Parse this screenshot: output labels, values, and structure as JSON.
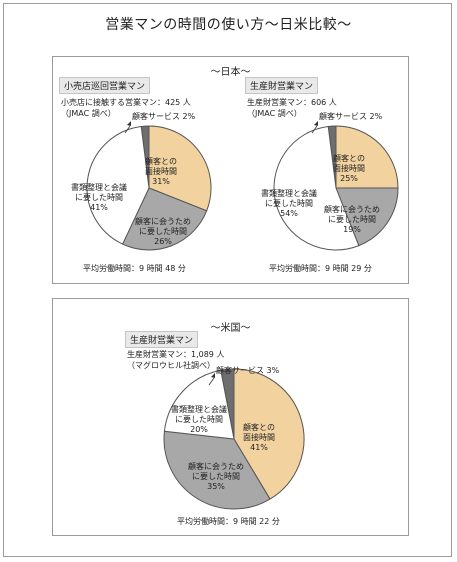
{
  "title": "営業マンの時間の使い方〜日米比較〜",
  "japan": {
    "heading": "〜日本〜",
    "retail": {
      "segment": "小売店巡回営業マン",
      "note": [
        "小売店に接触する営業マン：425 人",
        "（JMAC 調べ）"
      ],
      "avg": "平均労働時間：9 時間 48 分"
    },
    "production": {
      "segment": "生産財営業マン",
      "note": [
        "生産財営業マン：606 人",
        "（JMAC 調べ）"
      ],
      "avg": "平均労働時間：9 時間 29 分"
    }
  },
  "us": {
    "heading": "〜米国〜",
    "production": {
      "segment": "生産財営業マン",
      "note": [
        "生産財営業マン：1,089 人",
        "（マグロウヒル社調べ）"
      ],
      "avg": "平均労働時間：9 時間 22 分"
    }
  },
  "colors": {
    "face_to_face": "#f2d3a0",
    "meeting_travel": "#a8a8a8",
    "paperwork": "#ffffff",
    "customer_service": "#6e6e6e",
    "stroke": "#555555"
  },
  "chart_data": [
    {
      "type": "pie",
      "title": "小売店巡回営業マン",
      "slices": [
        {
          "label": "顧客サービス",
          "value": 2
        },
        {
          "label": "顧客との面接時間",
          "value": 31
        },
        {
          "label": "顧客に会うために要した時間",
          "value": 26
        },
        {
          "label": "書類整理と会議に要した時間",
          "value": 41
        }
      ],
      "labels": {
        "customer_service": [
          "顧客サービス 2%"
        ],
        "face_to_face": [
          "顧客との",
          "面接時間",
          "31%"
        ],
        "meeting_travel": [
          "顧客に会うため",
          "に要した時間",
          "26%"
        ],
        "paperwork": [
          "書類整理と会議",
          "に要した時間",
          "41%"
        ]
      }
    },
    {
      "type": "pie",
      "title": "生産財営業マン（日本）",
      "slices": [
        {
          "label": "顧客サービス",
          "value": 2
        },
        {
          "label": "顧客との面接時間",
          "value": 25
        },
        {
          "label": "顧客に会うために要した時間",
          "value": 19
        },
        {
          "label": "書類整理と会議に要した時間",
          "value": 54
        }
      ],
      "labels": {
        "customer_service": [
          "顧客サービス 2%"
        ],
        "face_to_face": [
          "顧客との",
          "面接時間",
          "25%"
        ],
        "meeting_travel": [
          "顧客に会うため",
          "に要した時間",
          "19%"
        ],
        "paperwork": [
          "書類整理と会議",
          "に要した時間",
          "54%"
        ]
      }
    },
    {
      "type": "pie",
      "title": "生産財営業マン（米国）",
      "slices": [
        {
          "label": "顧客サービス",
          "value": 3
        },
        {
          "label": "顧客との面接時間",
          "value": 41
        },
        {
          "label": "顧客に会うために要した時間",
          "value": 35
        },
        {
          "label": "書類整理と会議に要した時間",
          "value": 20
        }
      ],
      "labels": {
        "customer_service": [
          "顧客サービス 3%"
        ],
        "face_to_face": [
          "顧客との",
          "面接時間",
          "41%"
        ],
        "meeting_travel": [
          "顧客に会うため",
          "に要した時間",
          "35%"
        ],
        "paperwork": [
          "書類整理と会議",
          "に要した時間",
          "20%"
        ]
      }
    }
  ]
}
